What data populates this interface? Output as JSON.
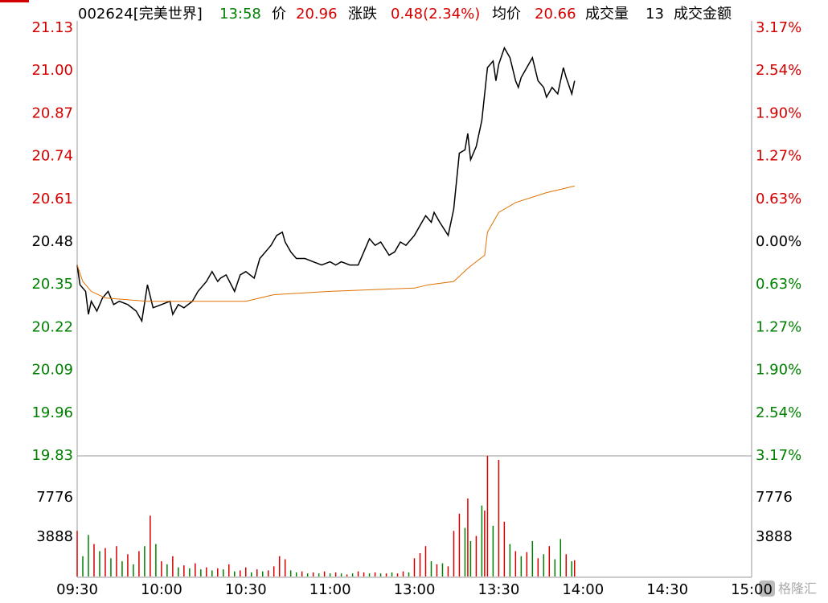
{
  "header": {
    "code_name": "002624[完美世界]",
    "time": "13:58",
    "price_label": "价",
    "price": "20.96",
    "change_label": "涨跌",
    "change": "0.48(2.34%)",
    "avg_label": "均价",
    "avg": "20.66",
    "volume_label": "成交量",
    "volume": "13",
    "amount_label": "成交金额"
  },
  "watermark": "格隆汇",
  "chart_data": {
    "type": "line",
    "xlim": [
      0,
      240
    ],
    "xticks": [
      {
        "value": 0,
        "label": "09:30"
      },
      {
        "value": 30,
        "label": "10:00"
      },
      {
        "value": 60,
        "label": "10:30"
      },
      {
        "value": 90,
        "label": "11:00"
      },
      {
        "value": 120,
        "label": "13:00"
      },
      {
        "value": 150,
        "label": "13:30"
      },
      {
        "value": 180,
        "label": "14:00"
      },
      {
        "value": 210,
        "label": "14:30"
      },
      {
        "value": 240,
        "label": "15:00"
      }
    ],
    "ylim": [
      19.83,
      21.13
    ],
    "yticks": [
      21.13,
      {
        "value": 21,
        "label": "21.00"
      },
      20.87,
      20.74,
      20.61,
      20.48,
      20.35,
      20.22,
      20.09,
      19.96,
      19.83
    ],
    "y2lim": [
      -3.17,
      3.17
    ],
    "y2ticks": [
      {
        "value": 3.17,
        "label": "3.17%"
      },
      {
        "value": 2.54,
        "label": "2.54%"
      },
      {
        "value": 1.9,
        "label": "1.90%"
      },
      {
        "value": 1.27,
        "label": "1.27%"
      },
      {
        "value": 0.63,
        "label": "0.63%"
      },
      {
        "value": 0,
        "label": "0.00%"
      },
      {
        "value": -0.63,
        "label": "0.63%"
      },
      {
        "value": -1.27,
        "label": "1.27%"
      },
      {
        "value": -1.9,
        "label": "1.90%"
      },
      {
        "value": -2.54,
        "label": "2.54%"
      },
      {
        "value": -3.17,
        "label": "3.17%"
      }
    ],
    "up_color": "#d40000",
    "down_color": "#008000",
    "flat_color": "#000000",
    "series": [
      {
        "color": "#000000",
        "x": [
          0,
          1,
          3,
          4,
          5,
          7,
          9,
          11,
          13,
          15,
          18,
          21,
          23,
          25,
          27,
          30,
          33,
          34,
          36,
          38,
          41,
          43,
          45,
          46,
          48,
          50,
          51,
          53,
          56,
          58,
          60,
          63,
          65,
          67,
          69,
          71,
          73,
          74,
          76,
          78,
          81,
          84,
          87,
          90,
          92,
          94,
          97,
          100,
          102,
          104,
          106,
          108,
          111,
          113,
          115,
          117,
          120,
          122,
          124,
          126,
          127,
          129,
          132,
          134,
          136,
          138,
          139,
          140,
          142,
          144,
          145,
          146,
          148,
          149,
          150,
          152,
          154,
          156,
          157,
          158,
          160,
          162,
          164,
          166,
          167,
          169,
          171,
          173,
          174,
          176,
          177
        ],
        "values": [
          20.41,
          20.35,
          20.33,
          20.26,
          20.3,
          20.27,
          20.31,
          20.33,
          20.29,
          20.3,
          20.29,
          20.27,
          20.24,
          20.35,
          20.28,
          20.29,
          20.3,
          20.26,
          20.29,
          20.28,
          20.3,
          20.33,
          20.35,
          20.36,
          20.39,
          20.36,
          20.37,
          20.38,
          20.33,
          20.38,
          20.39,
          20.37,
          20.43,
          20.45,
          20.47,
          20.5,
          20.51,
          20.48,
          20.45,
          20.43,
          20.43,
          20.42,
          20.41,
          20.42,
          20.41,
          20.42,
          20.41,
          20.41,
          20.45,
          20.49,
          20.47,
          20.48,
          20.44,
          20.45,
          20.48,
          20.47,
          20.5,
          20.53,
          20.56,
          20.54,
          20.57,
          20.54,
          20.5,
          20.58,
          20.75,
          20.76,
          20.81,
          20.73,
          20.77,
          20.85,
          20.93,
          21.01,
          21.03,
          20.97,
          21.02,
          21.07,
          21.04,
          20.97,
          20.95,
          20.98,
          21.01,
          21.04,
          20.97,
          20.95,
          20.92,
          20.95,
          20.93,
          21.01,
          20.98,
          20.93,
          20.97
        ]
      },
      {
        "color": "#e07000",
        "x": [
          0,
          2,
          5,
          10,
          25,
          60,
          70,
          90,
          120,
          125,
          134,
          139,
          145,
          146,
          150,
          156,
          167,
          177
        ],
        "values": [
          20.41,
          20.36,
          20.33,
          20.31,
          20.3,
          20.3,
          20.32,
          20.33,
          20.34,
          20.35,
          20.36,
          20.4,
          20.44,
          20.51,
          20.57,
          20.6,
          20.63,
          20.65
        ]
      }
    ],
    "volume": {
      "ylim": [
        0,
        11900
      ],
      "yticks": [
        3888,
        7776
      ],
      "x": [
        0,
        2,
        4,
        6,
        8,
        10,
        12,
        14,
        16,
        18,
        20,
        22,
        24,
        26,
        28,
        30,
        32,
        34,
        36,
        38,
        40,
        42,
        44,
        46,
        48,
        50,
        52,
        54,
        56,
        58,
        60,
        62,
        64,
        66,
        68,
        70,
        72,
        74,
        76,
        78,
        80,
        82,
        84,
        86,
        88,
        90,
        92,
        94,
        96,
        98,
        100,
        102,
        104,
        106,
        108,
        110,
        112,
        114,
        116,
        118,
        120,
        122,
        124,
        126,
        128,
        130,
        132,
        134,
        136,
        138,
        139,
        140,
        142,
        144,
        145,
        146,
        148,
        150,
        152,
        154,
        156,
        158,
        160,
        162,
        164,
        166,
        168,
        170,
        172,
        174,
        176,
        177
      ],
      "values": [
        4500,
        2000,
        4100,
        3200,
        2500,
        2800,
        1800,
        3000,
        1500,
        2200,
        1200,
        2500,
        3000,
        6000,
        3200,
        1500,
        1200,
        2000,
        900,
        1100,
        800,
        1300,
        700,
        900,
        600,
        800,
        700,
        1200,
        500,
        600,
        900,
        400,
        700,
        500,
        600,
        1000,
        2000,
        1700,
        600,
        400,
        500,
        300,
        400,
        300,
        500,
        300,
        400,
        300,
        200,
        300,
        500,
        400,
        300,
        400,
        300,
        300,
        400,
        300,
        500,
        400,
        1800,
        2300,
        3000,
        1500,
        1200,
        1300,
        1000,
        4500,
        6200,
        4800,
        7700,
        3500,
        4000,
        7000,
        6500,
        11900,
        5000,
        11500,
        5400,
        3200,
        2500,
        2000,
        2400,
        3500,
        1800,
        2200,
        3000,
        1700,
        3700,
        2200,
        1500,
        1600
      ],
      "colors": [
        "#d40000",
        "#008000",
        "#008000",
        "#d40000",
        "#008000",
        "#d40000",
        "#008000",
        "#d40000",
        "#008000",
        "#d40000",
        "#008000",
        "#d40000",
        "#008000",
        "#d40000",
        "#008000",
        "#d40000",
        "#008000",
        "#d40000",
        "#008000",
        "#d40000",
        "#008000",
        "#d40000",
        "#008000",
        "#d40000",
        "#008000",
        "#d40000",
        "#008000",
        "#d40000",
        "#008000",
        "#d40000",
        "#d40000",
        "#008000",
        "#d40000",
        "#008000",
        "#d40000",
        "#d40000",
        "#d40000",
        "#d40000",
        "#008000",
        "#008000",
        "#d40000",
        "#008000",
        "#d40000",
        "#008000",
        "#d40000",
        "#008000",
        "#d40000",
        "#008000",
        "#d40000",
        "#008000",
        "#d40000",
        "#d40000",
        "#008000",
        "#d40000",
        "#008000",
        "#d40000",
        "#008000",
        "#d40000",
        "#d40000",
        "#008000",
        "#d40000",
        "#d40000",
        "#d40000",
        "#008000",
        "#d40000",
        "#008000",
        "#d40000",
        "#d40000",
        "#d40000",
        "#008000",
        "#d40000",
        "#008000",
        "#d40000",
        "#008000",
        "#d40000",
        "#d40000",
        "#008000",
        "#d40000",
        "#d40000",
        "#008000",
        "#d40000",
        "#008000",
        "#d40000",
        "#008000",
        "#d40000",
        "#008000",
        "#d40000",
        "#008000",
        "#008000",
        "#d40000",
        "#008000",
        "#d40000"
      ]
    }
  }
}
